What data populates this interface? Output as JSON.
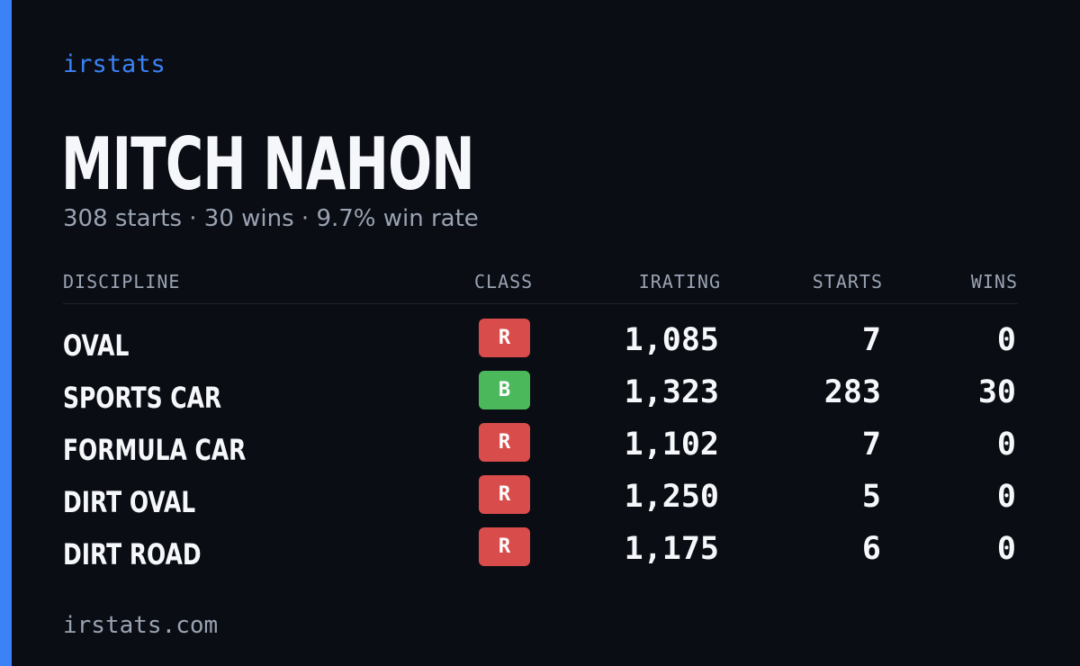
{
  "brand": "irstats",
  "driver": {
    "name": "MITCH NAHON",
    "summary": "308 starts · 30 wins · 9.7% win rate"
  },
  "table": {
    "headers": {
      "discipline": "DISCIPLINE",
      "class": "CLASS",
      "irating": "IRATING",
      "starts": "STARTS",
      "wins": "WINS"
    },
    "rows": [
      {
        "discipline": "OVAL",
        "class": "R",
        "class_color": "#d94c4c",
        "irating": "1,085",
        "starts": "7",
        "wins": "0"
      },
      {
        "discipline": "SPORTS CAR",
        "class": "B",
        "class_color": "#4cb85c",
        "irating": "1,323",
        "starts": "283",
        "wins": "30"
      },
      {
        "discipline": "FORMULA CAR",
        "class": "R",
        "class_color": "#d94c4c",
        "irating": "1,102",
        "starts": "7",
        "wins": "0"
      },
      {
        "discipline": "DIRT OVAL",
        "class": "R",
        "class_color": "#d94c4c",
        "irating": "1,250",
        "starts": "5",
        "wins": "0"
      },
      {
        "discipline": "DIRT ROAD",
        "class": "R",
        "class_color": "#d94c4c",
        "irating": "1,175",
        "starts": "6",
        "wins": "0"
      }
    ]
  },
  "footer": "irstats.com",
  "colors": {
    "accent": "#3b82f6",
    "background": "#0a0d14",
    "muted": "#9aa3b2"
  }
}
